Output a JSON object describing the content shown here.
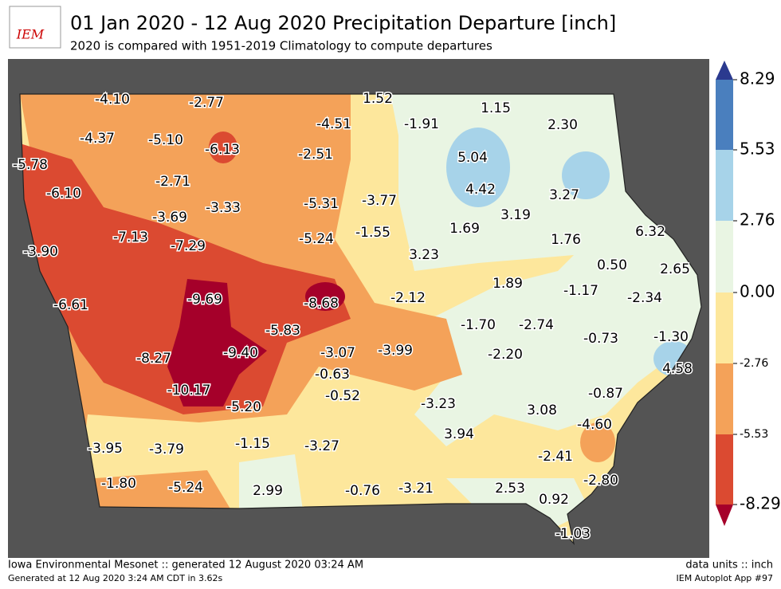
{
  "logo": "IEM",
  "header": {
    "title": "01 Jan 2020 - 12 Aug 2020 Precipitation Departure [inch]",
    "subtitle": "2020 is compared with 1951-2019 Climatology to compute departures"
  },
  "map": {
    "stations": [
      "-4.10",
      "-2.77",
      "1.52",
      "1.15",
      "2.30",
      "-4.37",
      "-5.10",
      "-6.13",
      "-4.51",
      "-1.91",
      "-5.78",
      "-2.51",
      "5.04",
      "-6.10",
      "-2.71",
      "4.42",
      "3.27",
      "-3.69",
      "-3.33",
      "-5.31",
      "-3.77",
      "3.19",
      "-3.90",
      "-7.13",
      "-7.29",
      "-5.24",
      "-1.55",
      "1.69",
      "1.76",
      "6.32",
      "3.23",
      "0.50",
      "2.65",
      "-6.61",
      "-9.69",
      "-8.68",
      "-2.12",
      "1.89",
      "-1.17",
      "-2.34",
      "-1.70",
      "-2.74",
      "-5.83",
      "-8.27",
      "-9.40",
      "-3.07",
      "-3.99",
      "-2.20",
      "-0.73",
      "-1.30",
      "4.58",
      "-0.63",
      "-10.17",
      "-0.52",
      "-5.20",
      "-3.23",
      "3.08",
      "-0.87",
      "-4.60",
      "3.94",
      "-3.95",
      "-3.79",
      "-1.15",
      "-3.27",
      "-2.41",
      "-1.80",
      "-5.24",
      "2.99",
      "-0.76",
      "-3.21",
      "2.53",
      "-2.80",
      "0.92",
      "-1.03"
    ]
  },
  "colorbar": {
    "ticks": [
      "8.29",
      "5.53",
      "2.76",
      "0.00",
      "-2.76",
      "-5.53",
      "-8.29"
    ]
  },
  "footer": {
    "left": "Iowa Environmental Mesonet :: generated 12 August 2020 03:24 AM",
    "right": "data units :: inch",
    "left2": "Generated at 12 Aug 2020 3:24 AM CDT in 3.62s",
    "right2": "IEM Autoplot App #97"
  }
}
